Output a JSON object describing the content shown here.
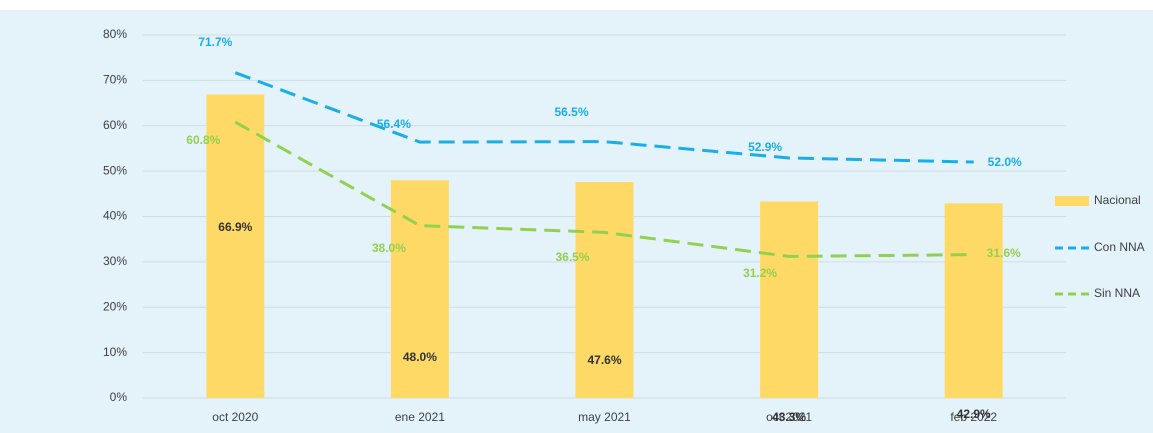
{
  "chart_data": {
    "type": "bar_line",
    "categories": [
      "oct 2020",
      "ene 2021",
      "may 2021",
      "oct 2021",
      "feb 2022"
    ],
    "series": [
      {
        "name": "Nacional",
        "type": "bar",
        "color": "#ffd966",
        "values": [
          66.9,
          48.0,
          47.6,
          43.3,
          42.9
        ],
        "value_labels": [
          "66.9%",
          "48.0%",
          "47.6%",
          "43.3%",
          "42.9%"
        ]
      },
      {
        "name": "Con NNA",
        "type": "line",
        "color": "#1aaee8",
        "values": [
          71.7,
          56.4,
          56.5,
          52.9,
          52.0
        ],
        "value_labels": [
          "71.7%",
          "56.4%",
          "56.5%",
          "52.9%",
          "52.0%"
        ]
      },
      {
        "name": "Sin NNA",
        "type": "line",
        "color": "#92d050",
        "values": [
          60.8,
          38.0,
          36.5,
          31.2,
          31.6
        ],
        "value_labels": [
          "60.8%",
          "38.0%",
          "36.5%",
          "31.2%",
          "31.6%"
        ]
      }
    ],
    "ylim": [
      0,
      80
    ],
    "yticks": [
      {
        "value": 0,
        "label": "0%"
      },
      {
        "value": 10,
        "label": "10%"
      },
      {
        "value": 20,
        "label": "20%"
      },
      {
        "value": 30,
        "label": "30%"
      },
      {
        "value": 40,
        "label": "40%"
      },
      {
        "value": 50,
        "label": "50%"
      },
      {
        "value": 60,
        "label": "60%"
      },
      {
        "value": 70,
        "label": "70%"
      },
      {
        "value": 80,
        "label": "80%"
      }
    ],
    "grid": true,
    "legend": "right"
  }
}
